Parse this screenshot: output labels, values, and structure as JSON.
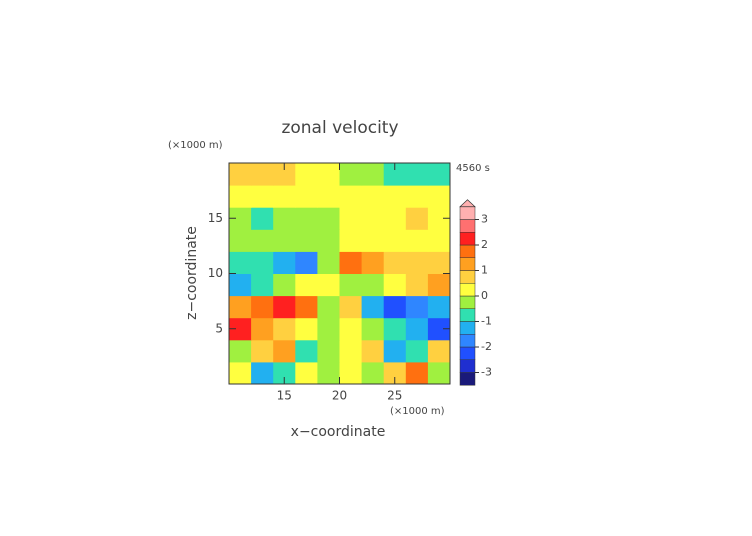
{
  "chart_data": {
    "type": "contour",
    "title": "zonal velocity",
    "x_unit": "(×1000 m)",
    "y_unit": "(×1000 m)",
    "time_label": "4560 s",
    "xlabel": "x−coordinate",
    "ylabel": "z−coordinate",
    "x": [
      11,
      13,
      15,
      17,
      19,
      21,
      23,
      25,
      27,
      29
    ],
    "z": [
      1,
      3,
      5,
      7,
      9,
      11,
      13,
      15,
      17,
      19
    ],
    "values": [
      [
        0.3,
        -1.5,
        -0.6,
        0.2,
        -0.3,
        0.3,
        -0.2,
        0.6,
        1.5,
        -0.3
      ],
      [
        -0.5,
        0.8,
        1.2,
        -0.8,
        -0.2,
        0.2,
        0.8,
        -1.2,
        -0.8,
        0.5
      ],
      [
        2.2,
        1.4,
        0.6,
        0.3,
        -0.3,
        0.3,
        -0.4,
        -0.7,
        -1.4,
        -2.2
      ],
      [
        1.2,
        1.6,
        2.2,
        1.5,
        -0.5,
        0.5,
        -1.5,
        -2.2,
        -1.6,
        -1.2
      ],
      [
        -1.2,
        -0.8,
        -0.3,
        0.4,
        0.3,
        -0.3,
        -0.5,
        0.4,
        0.9,
        1.2
      ],
      [
        -0.6,
        -0.8,
        -1.2,
        -1.8,
        -0.5,
        1.8,
        1.2,
        0.8,
        0.6,
        0.5
      ],
      [
        -0.2,
        -0.2,
        -0.1,
        -0.1,
        -0.1,
        0.2,
        0.3,
        0.3,
        0.3,
        0.2
      ],
      [
        -0.3,
        -0.8,
        -0.3,
        -0.2,
        -0.2,
        0.2,
        0.2,
        0.3,
        0.8,
        0.3
      ],
      [
        0.3,
        0.3,
        0.2,
        0.2,
        0.2,
        0.2,
        0.2,
        0.3,
        0.3,
        0.3
      ],
      [
        0.5,
        0.7,
        0.6,
        0.4,
        0.2,
        -0.2,
        -0.5,
        -0.8,
        -0.9,
        -0.6
      ]
    ],
    "xlim": [
      10,
      30
    ],
    "ylim": [
      0,
      20
    ],
    "xticks": [
      15,
      20,
      25
    ],
    "yticks": [
      5,
      10,
      15
    ],
    "levels": [
      -3.5,
      -3,
      -2.5,
      -2,
      -1.5,
      -1,
      -0.5,
      0,
      0.5,
      1,
      1.5,
      2,
      2.5,
      3
    ],
    "colors": [
      "#1a1a7a",
      "#1f2fd0",
      "#2050ff",
      "#2f86ff",
      "#22b0f0",
      "#30e0b0",
      "#a0f040",
      "#ffff40",
      "#ffd040",
      "#ffa020",
      "#ff7010",
      "#ff2020",
      "#ff7070",
      "#ffb0b0"
    ],
    "colorbar_ticks": [
      -3,
      -2,
      -1,
      0,
      1,
      2,
      3
    ]
  }
}
